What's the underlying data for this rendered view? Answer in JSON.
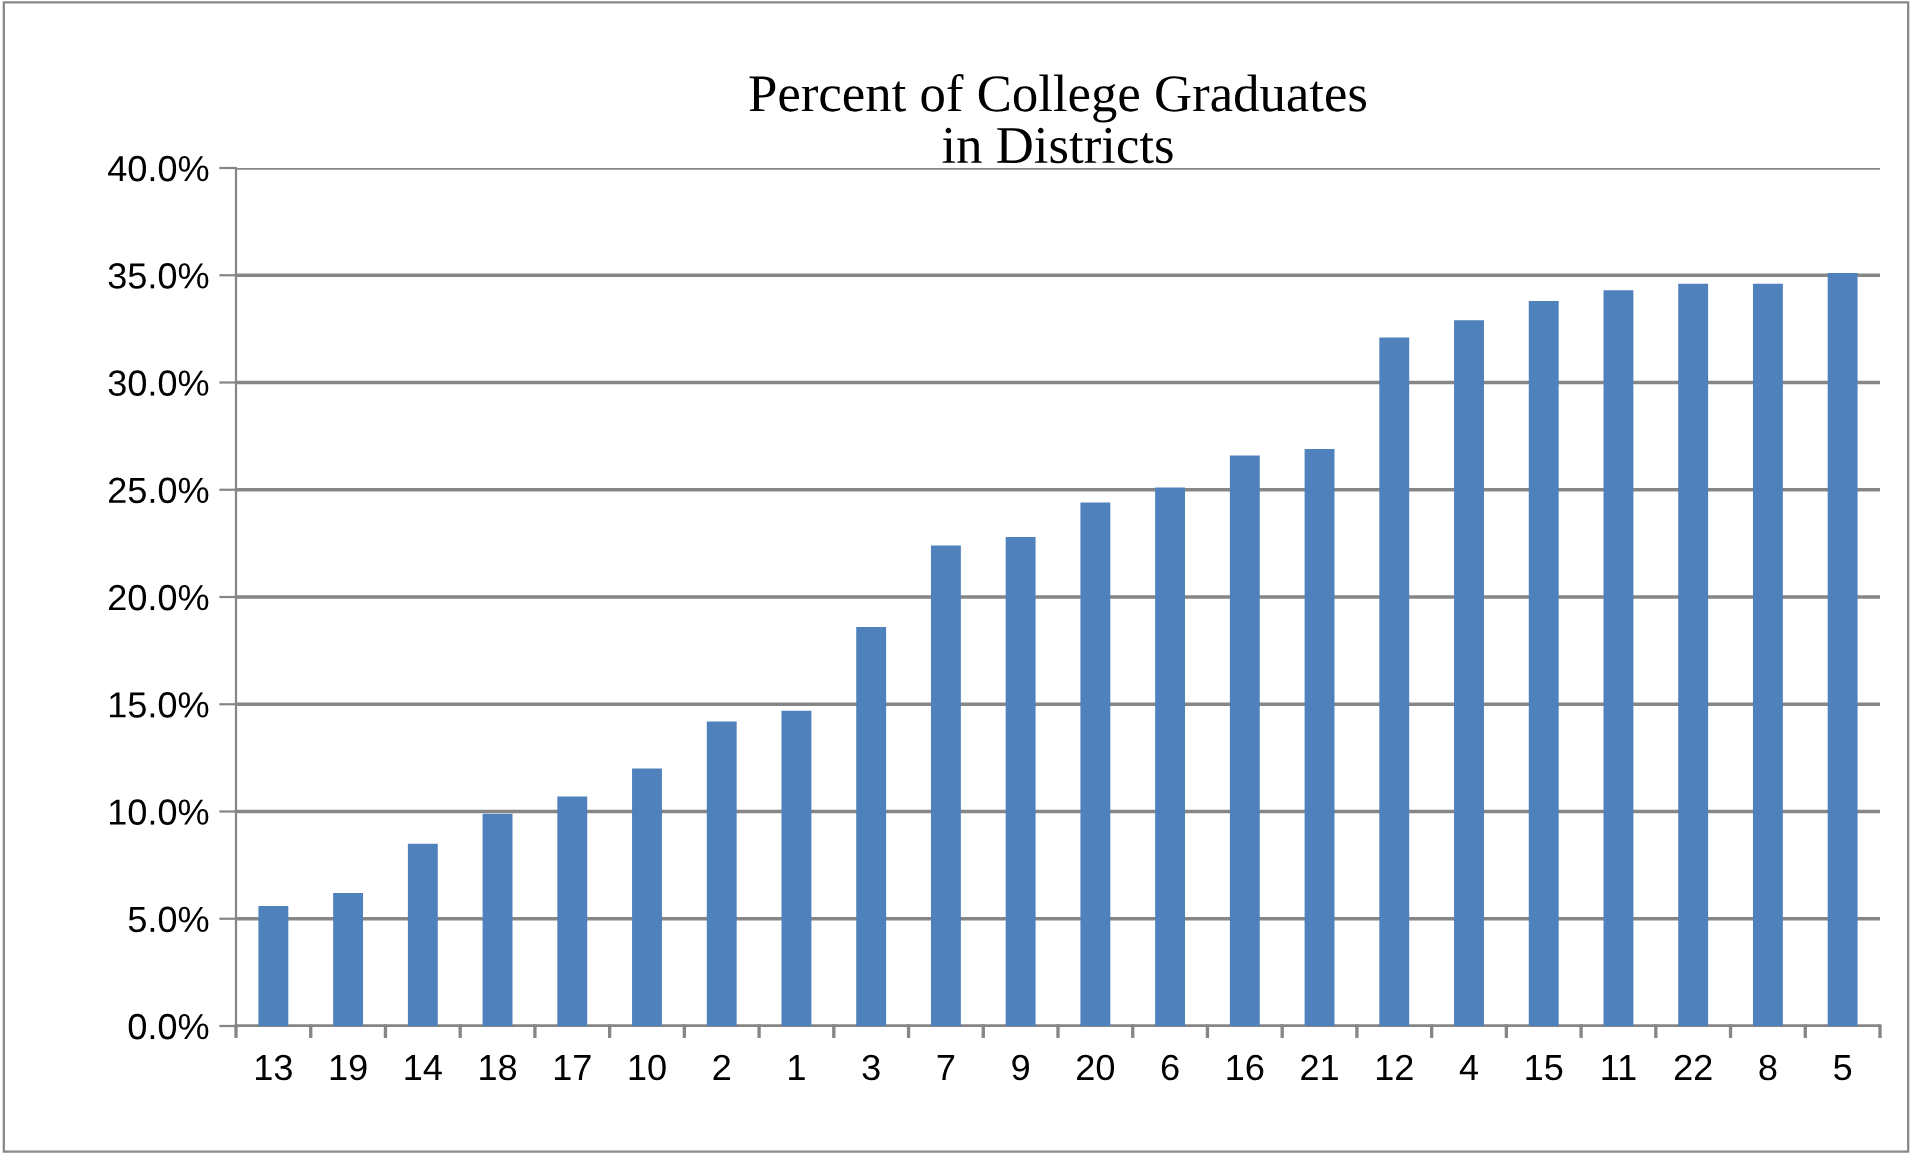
{
  "chart_data": {
    "type": "bar",
    "title": "Percent of College Graduates\nin Districts",
    "categories": [
      "13",
      "19",
      "14",
      "18",
      "17",
      "10",
      "2",
      "1",
      "3",
      "7",
      "9",
      "20",
      "6",
      "16",
      "21",
      "12",
      "4",
      "15",
      "11",
      "22",
      "8",
      "5"
    ],
    "values": [
      5.6,
      6.2,
      8.5,
      9.9,
      10.7,
      12.0,
      14.2,
      14.7,
      18.6,
      22.4,
      22.8,
      24.4,
      25.1,
      26.6,
      26.9,
      32.1,
      32.9,
      33.8,
      34.3,
      34.6,
      34.6,
      35.1
    ],
    "color": "#4f81bd",
    "ylim": [
      0,
      40
    ],
    "yticks": [
      {
        "value": 0,
        "label": "0.0%"
      },
      {
        "value": 5,
        "label": "5.0%"
      },
      {
        "value": 10,
        "label": "10.0%"
      },
      {
        "value": 15,
        "label": "15.0%"
      },
      {
        "value": 20,
        "label": "20.0%"
      },
      {
        "value": 25,
        "label": "25.0%"
      },
      {
        "value": 30,
        "label": "30.0%"
      },
      {
        "value": 35,
        "label": "35.0%"
      },
      {
        "value": 40,
        "label": "40.0%"
      }
    ],
    "grid": "y"
  }
}
